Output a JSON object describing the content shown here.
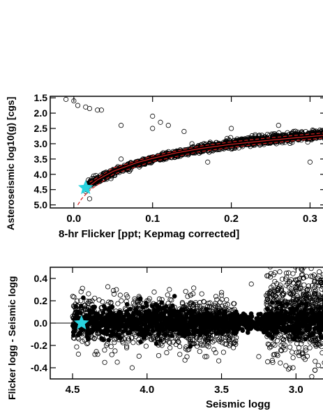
{
  "chart_data": [
    {
      "type": "scatter",
      "title": "",
      "xlabel": "8-hr Flicker [ppt; Kepmag corrected]",
      "ylabel": "Asteroseismic log10(g) [cgs]",
      "xlim": [
        -0.03,
        0.32
      ],
      "ylim": [
        5.1,
        1.45
      ],
      "y_inverted": true,
      "x_ticks": [
        0.0,
        0.1,
        0.2,
        0.3
      ],
      "x_tick_labels": [
        "0.0",
        "0.1",
        "0.2",
        "0.3"
      ],
      "y_ticks": [
        1.5,
        2.0,
        2.5,
        3.0,
        3.5,
        4.0,
        4.5,
        5.0
      ],
      "y_tick_labels": [
        "1.5",
        "2.0",
        "2.5",
        "3.0",
        "3.5",
        "4.0",
        "4.5",
        "5.0"
      ],
      "marker": "open-circle",
      "sun_marker": {
        "x": 0.015,
        "y": 4.44,
        "color": "#29d3df"
      },
      "fit_curve": {
        "x": [
          0.02,
          0.03,
          0.05,
          0.08,
          0.1,
          0.13,
          0.16,
          0.2,
          0.24,
          0.28,
          0.32
        ],
        "y": [
          4.38,
          4.18,
          3.9,
          3.62,
          3.48,
          3.3,
          3.16,
          3.02,
          2.91,
          2.81,
          2.72
        ],
        "color": "#000000",
        "overlay_color": "#d62020"
      },
      "fit_curve_dashed_upper": {
        "x": [
          0.02,
          0.05,
          0.1,
          0.16,
          0.2,
          0.24,
          0.28,
          0.32
        ],
        "y": [
          4.26,
          3.8,
          3.4,
          3.08,
          2.94,
          2.83,
          2.73,
          2.64
        ]
      },
      "fit_curve_dashed_lower": {
        "x": [
          0.005,
          0.01,
          0.02,
          0.05,
          0.1,
          0.16,
          0.2,
          0.24,
          0.28,
          0.32
        ],
        "y": [
          5.0,
          4.8,
          4.52,
          4.0,
          3.58,
          3.26,
          3.12,
          3.0,
          2.9,
          2.81
        ]
      },
      "data_band": [
        [
          0.015,
          4.46,
          0.08
        ],
        [
          0.02,
          4.3,
          0.1
        ],
        [
          0.03,
          4.18,
          0.12
        ],
        [
          0.05,
          3.92,
          0.12
        ],
        [
          0.08,
          3.65,
          0.1
        ],
        [
          0.1,
          3.5,
          0.1
        ],
        [
          0.13,
          3.32,
          0.1
        ],
        [
          0.16,
          3.17,
          0.12
        ],
        [
          0.2,
          3.0,
          0.14
        ],
        [
          0.24,
          2.88,
          0.14
        ],
        [
          0.28,
          2.78,
          0.14
        ],
        [
          0.32,
          2.7,
          0.14
        ]
      ],
      "outliers": [
        [
          -0.01,
          1.55
        ],
        [
          0.0,
          1.6
        ],
        [
          0.005,
          1.75
        ],
        [
          0.015,
          1.8
        ],
        [
          0.02,
          1.85
        ],
        [
          0.03,
          1.9
        ],
        [
          0.035,
          1.9
        ],
        [
          0.06,
          2.4
        ],
        [
          0.1,
          2.1
        ],
        [
          0.11,
          2.3
        ],
        [
          0.12,
          2.4
        ],
        [
          0.14,
          2.6
        ],
        [
          0.15,
          3.0
        ],
        [
          0.16,
          3.2
        ],
        [
          0.17,
          3.6
        ],
        [
          0.19,
          3.1
        ],
        [
          0.2,
          2.5
        ],
        [
          0.26,
          2.4
        ],
        [
          0.3,
          3.6
        ],
        [
          0.06,
          3.5
        ],
        [
          0.02,
          4.8
        ],
        [
          0.1,
          2.5
        ]
      ]
    },
    {
      "type": "scatter",
      "title": "",
      "xlabel": "Seismic logg",
      "ylabel": "Flicker logg - Seismic logg",
      "xlim": [
        4.65,
        2.8
      ],
      "x_inverted": true,
      "ylim": [
        -0.5,
        0.5
      ],
      "x_ticks": [
        4.5,
        4.0,
        3.5,
        3.0
      ],
      "x_tick_labels": [
        "4.5",
        "4.0",
        "3.5",
        "3.0"
      ],
      "y_ticks": [
        -0.4,
        -0.2,
        0.0,
        0.2,
        0.4
      ],
      "y_tick_labels": [
        "-0.4",
        "-0.2",
        "0.0",
        "0.2",
        "0.4"
      ],
      "zero_line": 0.0,
      "sun_marker": {
        "x": 4.44,
        "y": 0.0,
        "color": "#29d3df"
      },
      "series": [
        {
          "marker": "filled-circle",
          "band": [
            [
              4.5,
              4.3,
              0.0,
              0.06
            ],
            [
              4.3,
              3.6,
              0.01,
              0.07
            ],
            [
              3.6,
              3.2,
              0.0,
              0.04
            ],
            [
              3.2,
              2.8,
              0.02,
              0.06
            ]
          ]
        },
        {
          "marker": "open-circle",
          "band": [
            [
              4.5,
              3.9,
              0.0,
              0.12
            ],
            [
              3.9,
              3.4,
              0.0,
              0.1
            ],
            [
              3.2,
              2.8,
              0.08,
              0.2
            ]
          ]
        }
      ],
      "outliers": [
        [
          4.48,
          0.17
        ],
        [
          4.4,
          0.12
        ],
        [
          4.35,
          -0.28
        ],
        [
          4.3,
          0.05
        ],
        [
          4.2,
          -0.35
        ],
        [
          4.18,
          0.25
        ],
        [
          4.1,
          -0.4
        ],
        [
          4.05,
          0.12
        ],
        [
          4.0,
          0.2
        ],
        [
          3.9,
          -0.2
        ],
        [
          3.85,
          0.3
        ],
        [
          3.78,
          -0.28
        ],
        [
          3.7,
          0.18
        ],
        [
          3.6,
          -0.3
        ],
        [
          3.5,
          0.25
        ],
        [
          3.42,
          -0.22
        ],
        [
          3.3,
          0.35
        ],
        [
          3.25,
          -0.3
        ],
        [
          3.05,
          0.45
        ],
        [
          3.02,
          -0.4
        ],
        [
          2.9,
          0.42
        ],
        [
          2.85,
          -0.38
        ],
        [
          3.0,
          0.3
        ],
        [
          3.1,
          -0.2
        ]
      ]
    }
  ]
}
